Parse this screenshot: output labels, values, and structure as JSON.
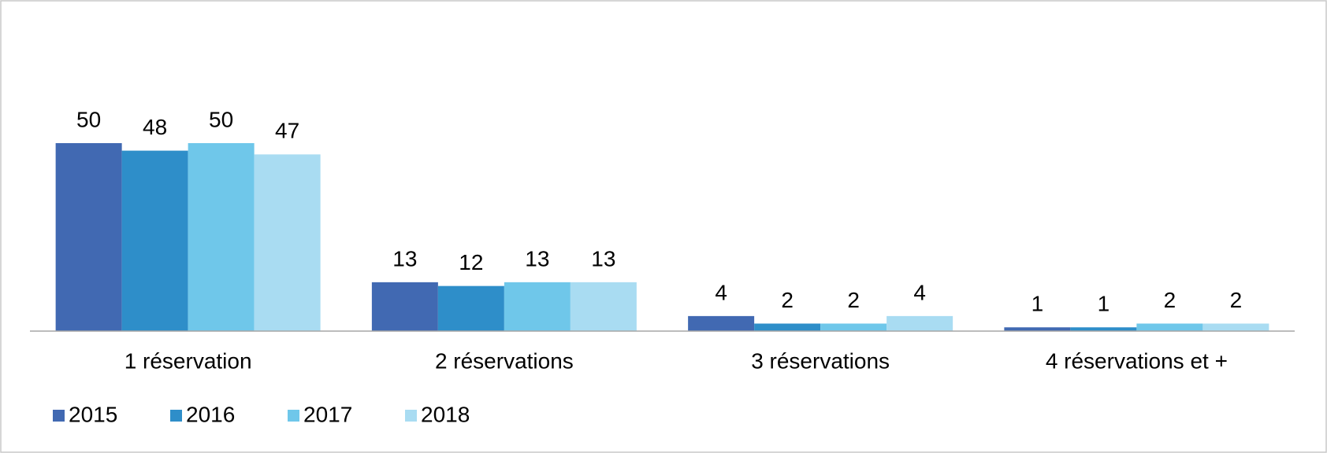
{
  "chart_data": {
    "type": "bar",
    "categories": [
      "1 réservation",
      "2 réservations",
      "3 réservations",
      "4 réservations et +"
    ],
    "series": [
      {
        "name": "2015",
        "color": "#4169b2",
        "values": [
          50,
          13,
          4,
          1
        ]
      },
      {
        "name": "2016",
        "color": "#2e8ec9",
        "values": [
          48,
          12,
          2,
          1
        ]
      },
      {
        "name": "2017",
        "color": "#6fc7ea",
        "values": [
          50,
          13,
          2,
          2
        ]
      },
      {
        "name": "2018",
        "color": "#a9dcf2",
        "values": [
          47,
          13,
          4,
          2
        ]
      }
    ],
    "legend": "bottom"
  }
}
